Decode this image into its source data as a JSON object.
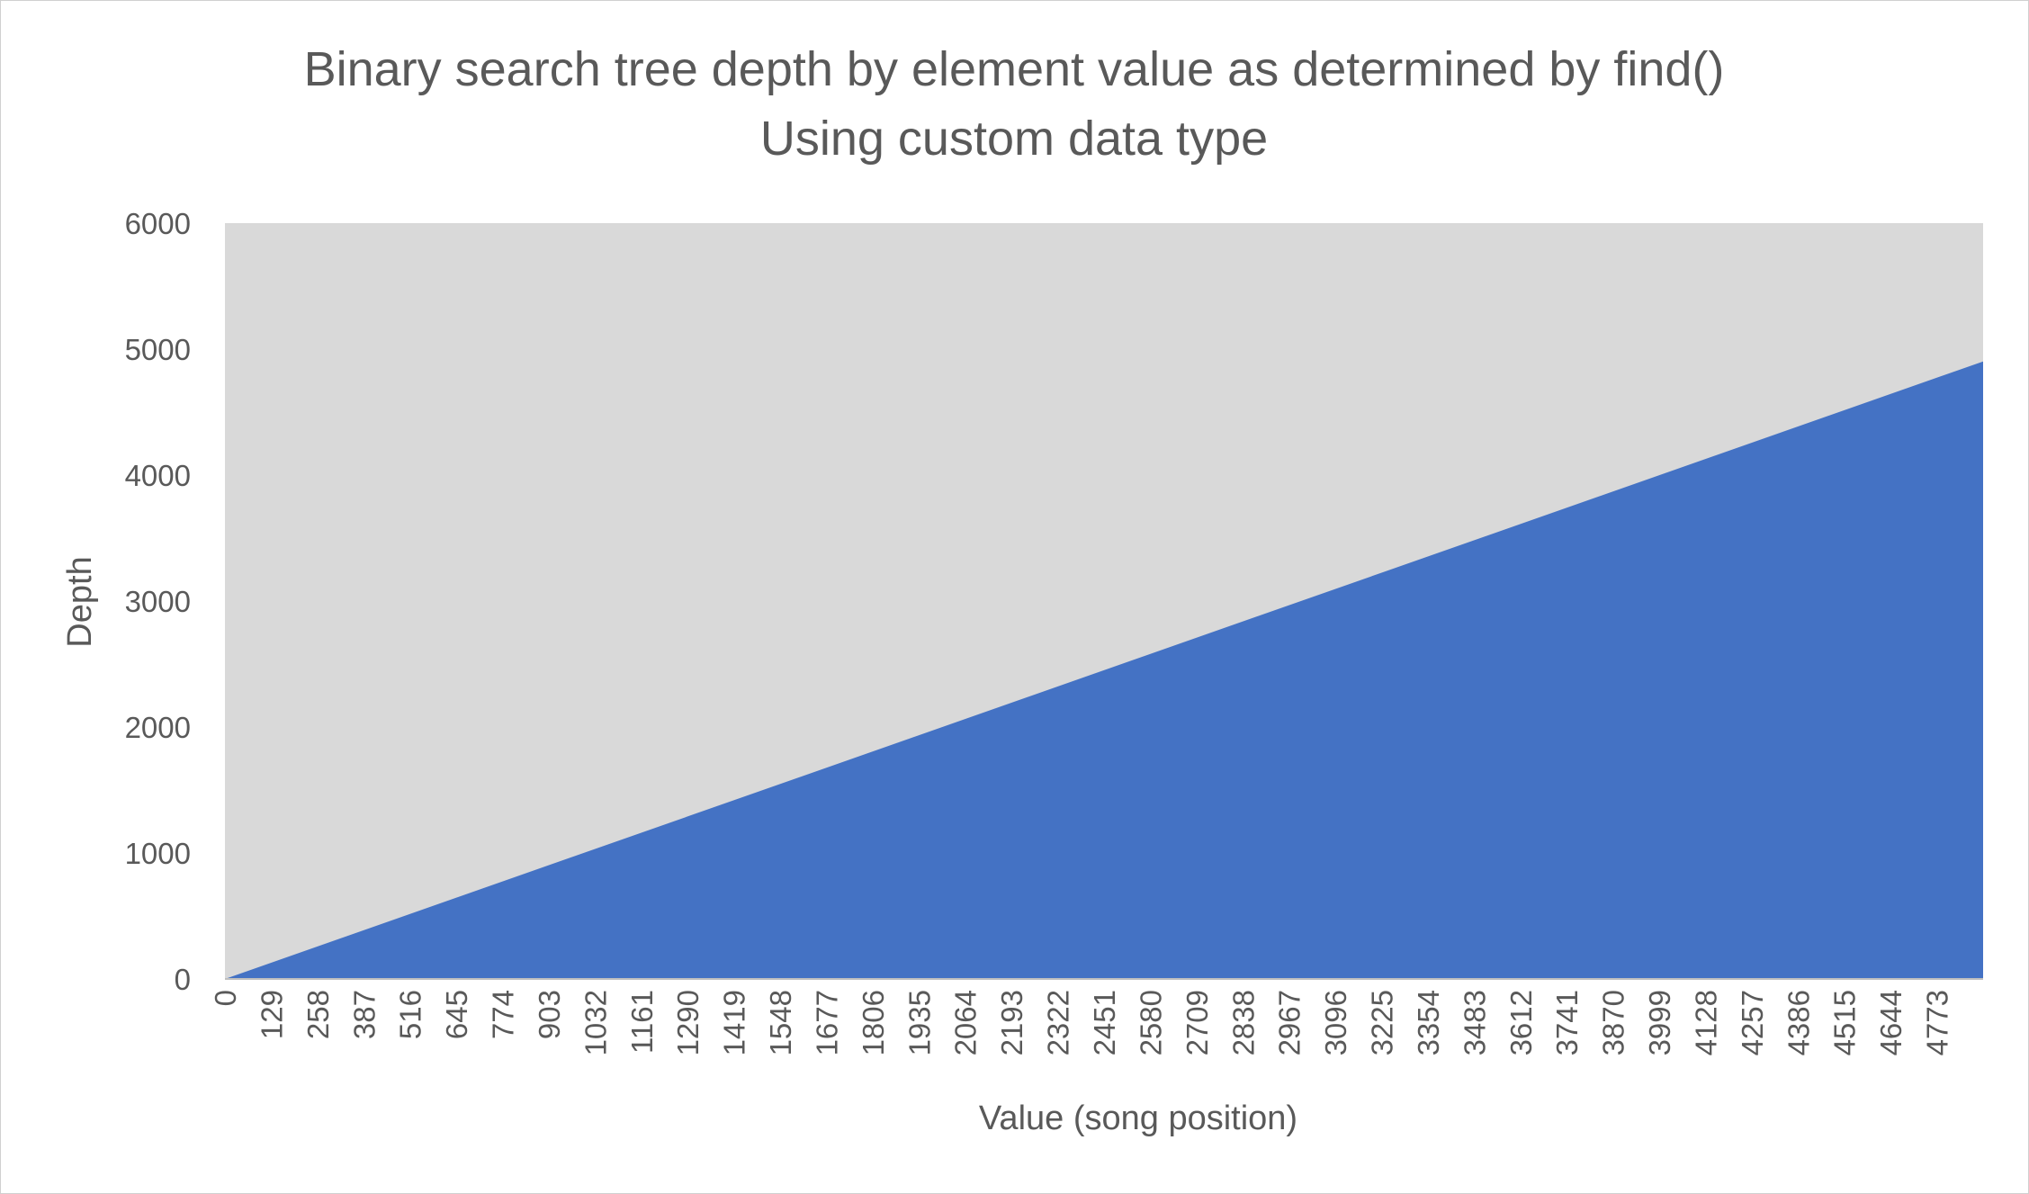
{
  "chart_data": {
    "type": "area",
    "title": "Binary search tree depth by element value as determined by find()",
    "subtitle": "Using custom data type",
    "xlabel": "Value (song position)",
    "ylabel": "Depth",
    "ylim": [
      0,
      6000
    ],
    "y_ticks": [
      "0",
      "1000",
      "2000",
      "3000",
      "4000",
      "5000",
      "6000"
    ],
    "x_tick_labels": [
      "0",
      "129",
      "258",
      "387",
      "516",
      "645",
      "774",
      "903",
      "1032",
      "1161",
      "1290",
      "1419",
      "1548",
      "1677",
      "1806",
      "1935",
      "2064",
      "2193",
      "2322",
      "2451",
      "2580",
      "2709",
      "2838",
      "2967",
      "3096",
      "3225",
      "3354",
      "3483",
      "3612",
      "3741",
      "3870",
      "3999",
      "4128",
      "4257",
      "4386",
      "4515",
      "4644",
      "4773"
    ],
    "x": [
      0,
      4902
    ],
    "series": [
      {
        "values": [
          0,
          4902
        ]
      }
    ],
    "grid": false,
    "legend": "none",
    "colors": {
      "plot_background": "#d9d9d9",
      "fill": "#4472c4",
      "text": "#595959"
    }
  }
}
